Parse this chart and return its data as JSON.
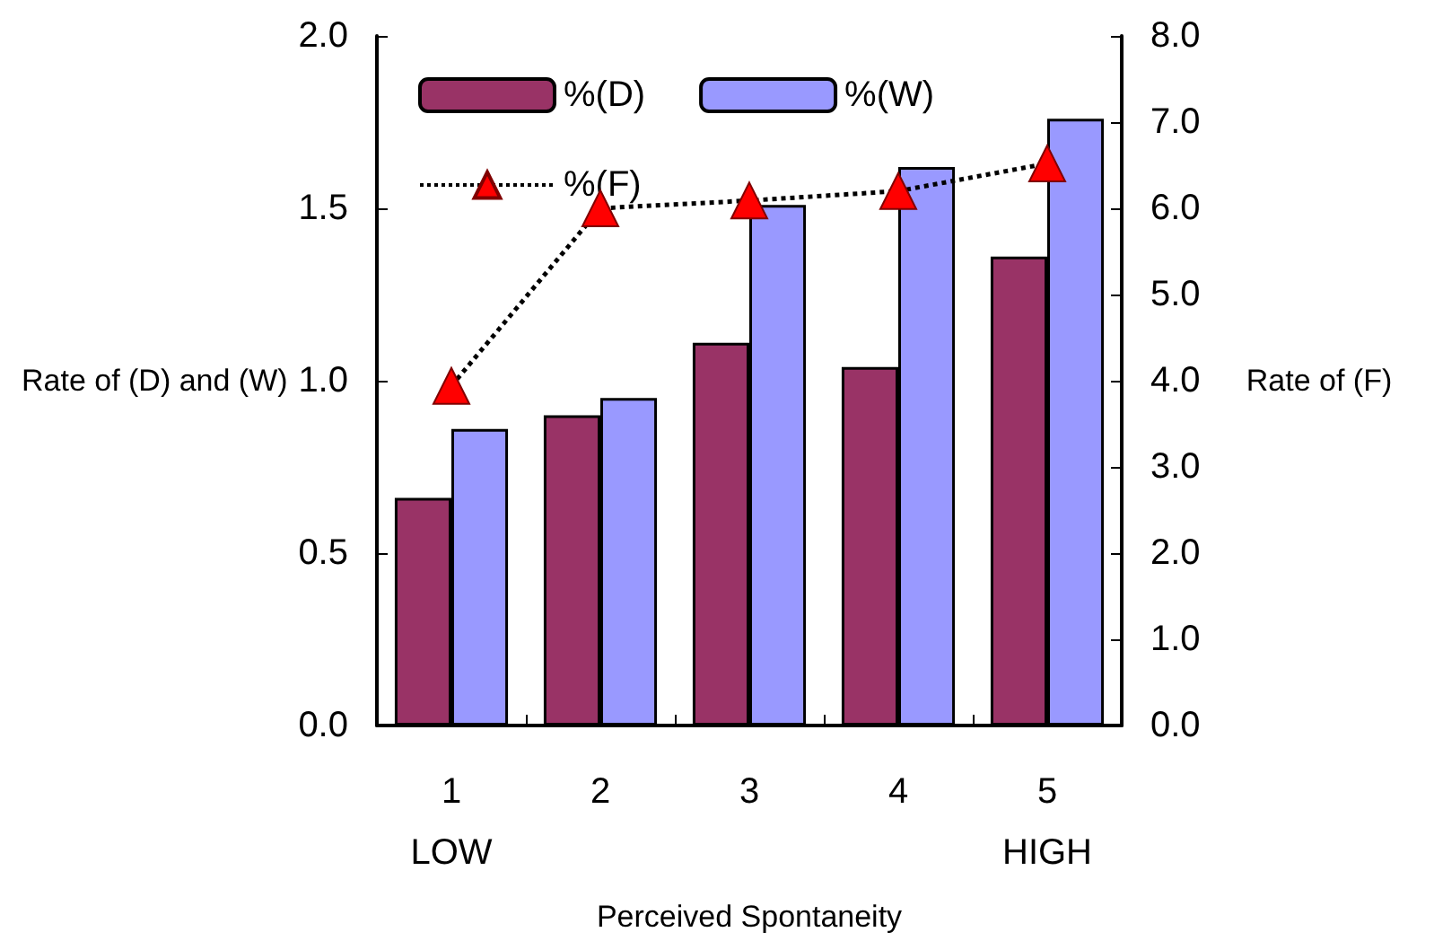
{
  "chart_data": {
    "type": "bar",
    "xlabel": "Perceived Spontaneity",
    "ylabel": "Rate of (D) and (W)",
    "y2label": "Rate of (F)",
    "categories": [
      "1\nLOW",
      "2",
      "3",
      "4",
      "5\nHIGH"
    ],
    "series": [
      {
        "name": "%(D)",
        "color": "#993366",
        "values": [
          0.66,
          0.9,
          1.11,
          1.04,
          1.36
        ]
      },
      {
        "name": "%(W)",
        "color": "#9999ff",
        "values": [
          0.86,
          0.95,
          1.51,
          1.62,
          1.76
        ]
      },
      {
        "name": "%(F)",
        "type": "line",
        "axis": "y2",
        "color": "#ff0000",
        "marker": "triangle",
        "line_style": "dotted",
        "values": [
          3.94,
          6.0,
          6.09,
          6.2,
          6.52
        ]
      }
    ],
    "ylim": [
      0,
      2
    ],
    "yticks": [
      {
        "value": 0,
        "label": "0.0"
      },
      {
        "value": 0.5,
        "label": "0.5"
      },
      {
        "value": 1,
        "label": "1.0"
      },
      {
        "value": 1.5,
        "label": "1.5"
      },
      {
        "value": 2,
        "label": "2.0"
      }
    ],
    "y2lim": [
      0,
      8
    ],
    "y2ticks": [
      {
        "value": 0,
        "label": "0.0"
      },
      {
        "value": 1,
        "label": "1.0"
      },
      {
        "value": 2,
        "label": "2.0"
      },
      {
        "value": 3,
        "label": "3.0"
      },
      {
        "value": 4,
        "label": "4.0"
      },
      {
        "value": 5,
        "label": "5.0"
      },
      {
        "value": 6,
        "label": "6.0"
      },
      {
        "value": 7,
        "label": "7.0"
      },
      {
        "value": 8,
        "label": "8.0"
      }
    ],
    "grid": false,
    "legend": "top left"
  }
}
